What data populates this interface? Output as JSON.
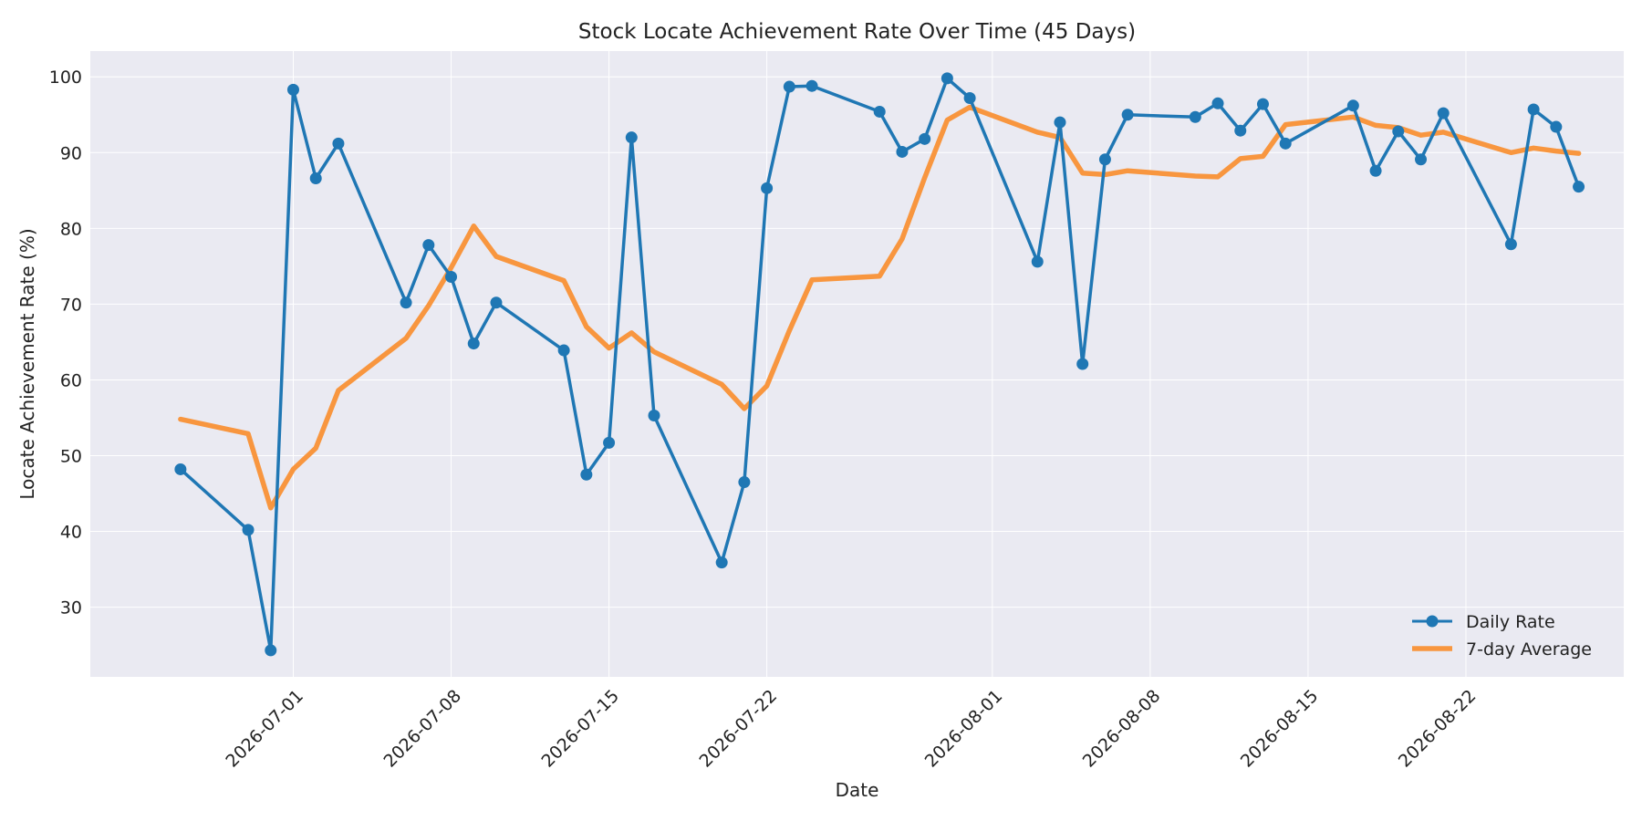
{
  "chart_data": {
    "type": "line",
    "title": "Stock Locate Achievement Rate Over Time (45 Days)",
    "xlabel": "Date",
    "ylabel": "Locate Achievement Rate (%)",
    "ylim": [
      20.8,
      103.4
    ],
    "xlim": [
      "2026-06-22",
      "2026-08-29"
    ],
    "grid": true,
    "legend_position": "bottom-right",
    "x_ticks": [
      "2026-07-01",
      "2026-07-08",
      "2026-07-15",
      "2026-07-22",
      "2026-08-01",
      "2026-08-08",
      "2026-08-15",
      "2026-08-22"
    ],
    "y_ticks": [
      30,
      40,
      50,
      60,
      70,
      80,
      90,
      100
    ],
    "colors": {
      "daily": "#1f77b4",
      "avg": "#f8963f",
      "plot_bg": "#eaeaf2"
    },
    "series": [
      {
        "name": "Daily Rate",
        "style": "line-with-markers",
        "points": [
          [
            "2026-06-26",
            48.2
          ],
          [
            "2026-06-29",
            40.2
          ],
          [
            "2026-06-30",
            24.3
          ],
          [
            "2026-07-01",
            98.3
          ],
          [
            "2026-07-02",
            86.6
          ],
          [
            "2026-07-03",
            91.2
          ],
          [
            "2026-07-06",
            70.2
          ],
          [
            "2026-07-07",
            77.8
          ],
          [
            "2026-07-08",
            73.6
          ],
          [
            "2026-07-09",
            64.8
          ],
          [
            "2026-07-10",
            70.2
          ],
          [
            "2026-07-13",
            63.9
          ],
          [
            "2026-07-14",
            47.5
          ],
          [
            "2026-07-15",
            51.7
          ],
          [
            "2026-07-16",
            92.0
          ],
          [
            "2026-07-17",
            55.3
          ],
          [
            "2026-07-20",
            35.9
          ],
          [
            "2026-07-21",
            46.5
          ],
          [
            "2026-07-22",
            85.3
          ],
          [
            "2026-07-23",
            98.7
          ],
          [
            "2026-07-24",
            98.8
          ],
          [
            "2026-07-27",
            95.4
          ],
          [
            "2026-07-28",
            90.1
          ],
          [
            "2026-07-29",
            91.8
          ],
          [
            "2026-07-30",
            99.8
          ],
          [
            "2026-07-31",
            97.2
          ],
          [
            "2026-08-03",
            75.6
          ],
          [
            "2026-08-04",
            94.0
          ],
          [
            "2026-08-05",
            62.1
          ],
          [
            "2026-08-06",
            89.1
          ],
          [
            "2026-08-07",
            95.0
          ],
          [
            "2026-08-10",
            94.7
          ],
          [
            "2026-08-11",
            96.5
          ],
          [
            "2026-08-12",
            92.9
          ],
          [
            "2026-08-13",
            96.4
          ],
          [
            "2026-08-14",
            91.2
          ],
          [
            "2026-08-17",
            96.2
          ],
          [
            "2026-08-18",
            87.6
          ],
          [
            "2026-08-19",
            92.8
          ],
          [
            "2026-08-20",
            89.1
          ],
          [
            "2026-08-21",
            95.2
          ],
          [
            "2026-08-24",
            77.9
          ],
          [
            "2026-08-25",
            95.7
          ],
          [
            "2026-08-26",
            93.4
          ],
          [
            "2026-08-27",
            85.5
          ]
        ]
      },
      {
        "name": "7-day Average",
        "style": "line",
        "points": [
          [
            "2026-06-26",
            54.8
          ],
          [
            "2026-06-29",
            52.9
          ],
          [
            "2026-06-30",
            43.1
          ],
          [
            "2026-07-01",
            48.2
          ],
          [
            "2026-07-02",
            51.0
          ],
          [
            "2026-07-03",
            58.6
          ],
          [
            "2026-07-06",
            65.5
          ],
          [
            "2026-07-07",
            69.8
          ],
          [
            "2026-07-08",
            74.8
          ],
          [
            "2026-07-09",
            80.3
          ],
          [
            "2026-07-10",
            76.3
          ],
          [
            "2026-07-13",
            73.1
          ],
          [
            "2026-07-14",
            67.0
          ],
          [
            "2026-07-15",
            64.2
          ],
          [
            "2026-07-16",
            66.2
          ],
          [
            "2026-07-17",
            63.7
          ],
          [
            "2026-07-20",
            59.4
          ],
          [
            "2026-07-21",
            56.2
          ],
          [
            "2026-07-22",
            59.2
          ],
          [
            "2026-07-23",
            66.5
          ],
          [
            "2026-07-24",
            73.2
          ],
          [
            "2026-07-27",
            73.7
          ],
          [
            "2026-07-28",
            78.6
          ],
          [
            "2026-07-29",
            86.7
          ],
          [
            "2026-07-30",
            94.3
          ],
          [
            "2026-07-31",
            96.0
          ],
          [
            "2026-08-03",
            92.7
          ],
          [
            "2026-08-04",
            92.0
          ],
          [
            "2026-08-05",
            87.3
          ],
          [
            "2026-08-06",
            87.1
          ],
          [
            "2026-08-07",
            87.6
          ],
          [
            "2026-08-10",
            86.9
          ],
          [
            "2026-08-11",
            86.8
          ],
          [
            "2026-08-12",
            89.2
          ],
          [
            "2026-08-13",
            89.5
          ],
          [
            "2026-08-14",
            93.7
          ],
          [
            "2026-08-17",
            94.7
          ],
          [
            "2026-08-18",
            93.6
          ],
          [
            "2026-08-19",
            93.3
          ],
          [
            "2026-08-20",
            92.3
          ],
          [
            "2026-08-21",
            92.7
          ],
          [
            "2026-08-24",
            90.0
          ],
          [
            "2026-08-25",
            90.6
          ],
          [
            "2026-08-26",
            90.2
          ],
          [
            "2026-08-27",
            89.9
          ]
        ]
      }
    ]
  }
}
